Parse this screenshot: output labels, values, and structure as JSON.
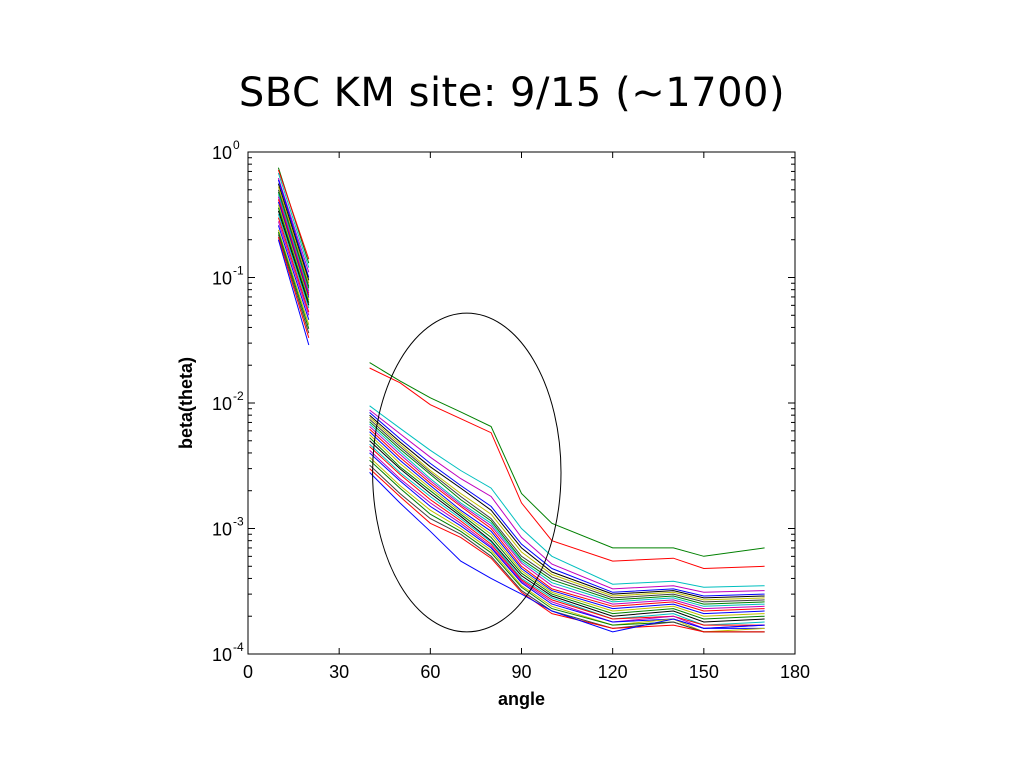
{
  "slide": {
    "title": "SBC KM site: 9/15 (~1700)"
  },
  "chart_data": {
    "type": "line",
    "title": "",
    "xlabel": "angle",
    "ylabel": "beta(theta)",
    "xlim": [
      0,
      180
    ],
    "ylim": [
      0.0001,
      1
    ],
    "yscale": "log",
    "xticks": [
      0,
      30,
      60,
      90,
      120,
      150,
      180
    ],
    "yticks": [
      {
        "value": 1,
        "base": "10",
        "exp": "0"
      },
      {
        "value": 0.1,
        "base": "10",
        "exp": "-1"
      },
      {
        "value": 0.01,
        "base": "10",
        "exp": "-2"
      },
      {
        "value": 0.001,
        "base": "10",
        "exp": "-3"
      },
      {
        "value": 0.0001,
        "base": "10",
        "exp": "-4"
      }
    ],
    "grid": false,
    "legend": "none",
    "x_forward": [
      10,
      20
    ],
    "x_side": [
      40,
      50,
      60,
      70,
      80,
      90,
      100,
      120,
      140,
      150,
      170
    ],
    "series": [
      {
        "color": "#008000",
        "forward": [
          0.75,
          0.13
        ],
        "side": [
          0.021,
          0.015,
          0.011,
          0.0085,
          0.0065,
          0.0019,
          0.0011,
          0.0007,
          0.0007,
          0.0006,
          0.0007
        ]
      },
      {
        "color": "#ff0000",
        "forward": [
          0.72,
          0.14
        ],
        "side": [
          0.019,
          0.0145,
          0.0097,
          0.0075,
          0.0058,
          0.0016,
          0.0008,
          0.00055,
          0.00058,
          0.00048,
          0.0005
        ]
      },
      {
        "color": "#00bfbf",
        "forward": [
          0.68,
          0.12
        ],
        "side": [
          0.0095,
          0.0063,
          0.0042,
          0.0029,
          0.0021,
          0.001,
          0.0006,
          0.00036,
          0.00038,
          0.00034,
          0.00035
        ]
      },
      {
        "color": "#bf00bf",
        "forward": [
          0.62,
          0.11
        ],
        "side": [
          0.0088,
          0.0057,
          0.0037,
          0.0025,
          0.0018,
          0.00085,
          0.00052,
          0.00033,
          0.00035,
          0.00031,
          0.00032
        ]
      },
      {
        "color": "#0000ff",
        "forward": [
          0.6,
          0.1
        ],
        "side": [
          0.0084,
          0.0052,
          0.0033,
          0.0022,
          0.0015,
          0.00075,
          0.00048,
          0.00031,
          0.00033,
          0.00029,
          0.0003
        ]
      },
      {
        "color": "#000000",
        "forward": [
          0.56,
          0.095
        ],
        "side": [
          0.008,
          0.0049,
          0.0031,
          0.0021,
          0.0014,
          0.0007,
          0.00045,
          0.0003,
          0.00032,
          0.00028,
          0.00029
        ]
      },
      {
        "color": "#bfbf00",
        "forward": [
          0.53,
          0.09
        ],
        "side": [
          0.0077,
          0.0047,
          0.0029,
          0.0019,
          0.0013,
          0.00065,
          0.00043,
          0.00029,
          0.00031,
          0.00027,
          0.00028
        ]
      },
      {
        "color": "#404040",
        "forward": [
          0.5,
          0.085
        ],
        "side": [
          0.0074,
          0.0045,
          0.0028,
          0.0018,
          0.0012,
          0.0006,
          0.00041,
          0.00028,
          0.0003,
          0.00026,
          0.00027
        ]
      },
      {
        "color": "#008000",
        "forward": [
          0.48,
          0.082
        ],
        "side": [
          0.0071,
          0.0043,
          0.0027,
          0.0017,
          0.00115,
          0.00057,
          0.00039,
          0.00027,
          0.00029,
          0.00025,
          0.00026
        ]
      },
      {
        "color": "#00bfbf",
        "forward": [
          0.46,
          0.078
        ],
        "side": [
          0.0068,
          0.0041,
          0.0025,
          0.0016,
          0.0011,
          0.00055,
          0.00037,
          0.00026,
          0.00028,
          0.00024,
          0.00025
        ]
      },
      {
        "color": "#bf00bf",
        "forward": [
          0.44,
          0.075
        ],
        "side": [
          0.0065,
          0.0039,
          0.0024,
          0.00155,
          0.00105,
          0.00053,
          0.00035,
          0.00025,
          0.00027,
          0.00023,
          0.00024
        ]
      },
      {
        "color": "#ff0000",
        "forward": [
          0.42,
          0.072
        ],
        "side": [
          0.0062,
          0.0037,
          0.0023,
          0.0015,
          0.001,
          0.0005,
          0.00033,
          0.00024,
          0.00026,
          0.00022,
          0.00023
        ]
      },
      {
        "color": "#0000ff",
        "forward": [
          0.4,
          0.069
        ],
        "side": [
          0.0059,
          0.0035,
          0.0022,
          0.0014,
          0.00095,
          0.00048,
          0.00032,
          0.00023,
          0.00025,
          0.00021,
          0.00022
        ]
      },
      {
        "color": "#bfbf00",
        "forward": [
          0.38,
          0.066
        ],
        "side": [
          0.0056,
          0.0033,
          0.0021,
          0.00135,
          0.0009,
          0.00046,
          0.00031,
          0.00022,
          0.00024,
          0.0002,
          0.00021
        ]
      },
      {
        "color": "#008000",
        "forward": [
          0.36,
          0.063
        ],
        "side": [
          0.0053,
          0.0031,
          0.002,
          0.0013,
          0.00085,
          0.00044,
          0.0003,
          0.00021,
          0.00023,
          0.00019,
          0.0002
        ]
      },
      {
        "color": "#000000",
        "forward": [
          0.34,
          0.06
        ],
        "side": [
          0.005,
          0.003,
          0.0019,
          0.00125,
          0.0008,
          0.00042,
          0.00029,
          0.0002,
          0.00022,
          0.00018,
          0.00019
        ]
      },
      {
        "color": "#00bfbf",
        "forward": [
          0.32,
          0.057
        ],
        "side": [
          0.0047,
          0.0028,
          0.0018,
          0.0012,
          0.00078,
          0.0004,
          0.00028,
          0.00019,
          0.00021,
          0.00017,
          0.00018
        ]
      },
      {
        "color": "#ff0000",
        "forward": [
          0.3,
          0.053
        ],
        "side": [
          0.0045,
          0.0027,
          0.0017,
          0.00115,
          0.00075,
          0.00039,
          0.00027,
          0.00019,
          0.0002,
          0.00017,
          0.00017
        ]
      },
      {
        "color": "#bf00bf",
        "forward": [
          0.28,
          0.05
        ],
        "side": [
          0.0042,
          0.0025,
          0.0016,
          0.0011,
          0.00072,
          0.00038,
          0.00026,
          0.00018,
          0.0002,
          0.00016,
          0.00017
        ]
      },
      {
        "color": "#0000ff",
        "forward": [
          0.26,
          0.046
        ],
        "side": [
          0.004,
          0.0024,
          0.0015,
          0.00105,
          0.0007,
          0.00037,
          0.00025,
          0.00018,
          0.00019,
          0.00016,
          0.00016
        ]
      },
      {
        "color": "#bfbf00",
        "forward": [
          0.24,
          0.042
        ],
        "side": [
          0.0037,
          0.0022,
          0.0014,
          0.001,
          0.00067,
          0.00035,
          0.00024,
          0.00017,
          0.00019,
          0.00015,
          0.00016
        ]
      },
      {
        "color": "#008000",
        "forward": [
          0.23,
          0.039
        ],
        "side": [
          0.0035,
          0.0021,
          0.0013,
          0.00095,
          0.00064,
          0.00034,
          0.00023,
          0.00017,
          0.00018,
          0.00015,
          0.00015
        ]
      },
      {
        "color": "#404040",
        "forward": [
          0.22,
          0.036
        ],
        "side": [
          0.0032,
          0.0019,
          0.0012,
          0.0009,
          0.0006,
          0.00032,
          0.00022,
          0.00016,
          0.00018,
          0.00015,
          0.00015
        ]
      },
      {
        "color": "#ff0000",
        "forward": [
          0.21,
          0.033
        ],
        "side": [
          0.003,
          0.0018,
          0.0011,
          0.00085,
          0.00058,
          0.00031,
          0.00021,
          0.00016,
          0.00017,
          0.00015,
          0.00015
        ]
      },
      {
        "color": "#0000ff",
        "forward": [
          0.2,
          0.029
        ],
        "side": [
          0.0028,
          0.0016,
          0.00095,
          0.00055,
          0.0004,
          0.0003,
          0.00022,
          0.00015,
          0.00019,
          0.00016,
          0.00017
        ]
      }
    ],
    "annotation": {
      "shape": "ellipse",
      "cx": 72,
      "cy": 0.0014,
      "x_radius": 31,
      "y_top": 0.052,
      "y_bottom": 0.00015
    }
  }
}
